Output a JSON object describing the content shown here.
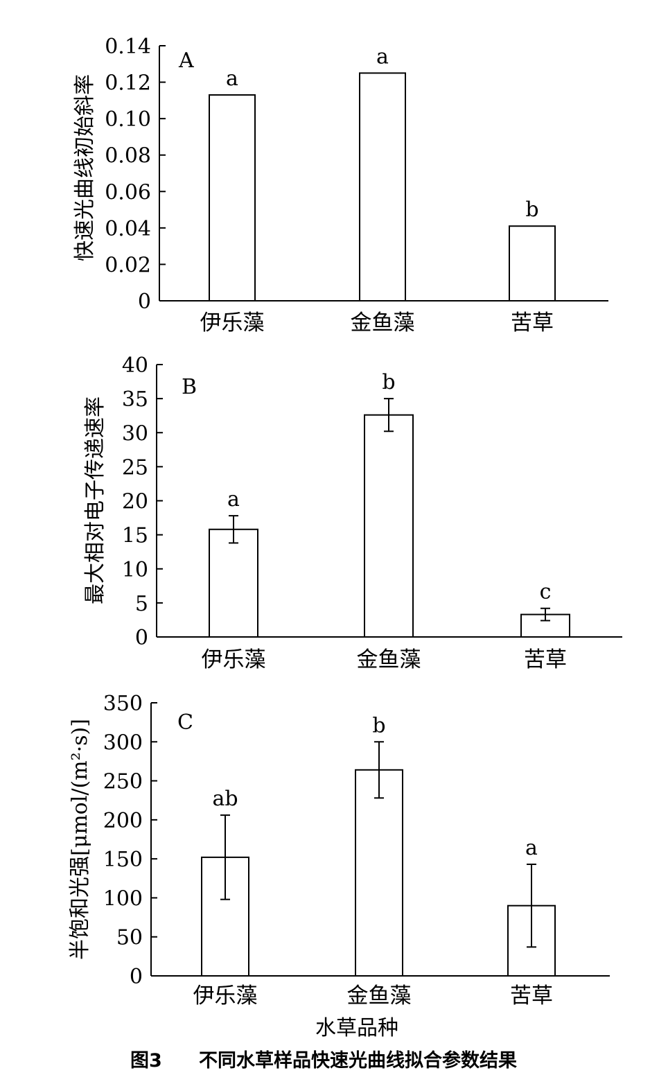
{
  "figure": {
    "caption_number": "图3",
    "caption_text": "不同水草样品快速光曲线拟合参数结果",
    "xlabel": "水草品种"
  },
  "chart_data": [
    {
      "type": "bar",
      "panel_label": "A",
      "ylabel": "快速光曲线初始斜率",
      "categories": [
        "伊乐藻",
        "金鱼藻",
        "苦草"
      ],
      "values": [
        0.113,
        0.125,
        0.041
      ],
      "errors": [
        0,
        0,
        0
      ],
      "letters": [
        "a",
        "a",
        "b"
      ],
      "yticks": [
        "0",
        "0.02",
        "0.04",
        "0.06",
        "0.08",
        "0.10",
        "0.12",
        "0.14"
      ],
      "ylim": [
        0,
        0.14
      ]
    },
    {
      "type": "bar",
      "panel_label": "B",
      "ylabel": "最大相对电子传递速率",
      "categories": [
        "伊乐藻",
        "金鱼藻",
        "苦草"
      ],
      "values": [
        15.8,
        32.6,
        3.3
      ],
      "errors": [
        2.0,
        2.4,
        0.9
      ],
      "letters": [
        "a",
        "b",
        "c"
      ],
      "yticks": [
        "0",
        "5",
        "10",
        "15",
        "20",
        "25",
        "30",
        "35",
        "40"
      ],
      "ylim": [
        0,
        40
      ]
    },
    {
      "type": "bar",
      "panel_label": "C",
      "ylabel": "半饱和光强[μmol/(m²·s)]",
      "categories": [
        "伊乐藻",
        "金鱼藻",
        "苦草"
      ],
      "values": [
        152,
        264,
        90
      ],
      "errors": [
        54,
        36,
        53
      ],
      "letters": [
        "ab",
        "b",
        "a"
      ],
      "yticks": [
        "0",
        "50",
        "100",
        "150",
        "200",
        "250",
        "300",
        "350"
      ],
      "ylim": [
        0,
        350
      ]
    }
  ]
}
